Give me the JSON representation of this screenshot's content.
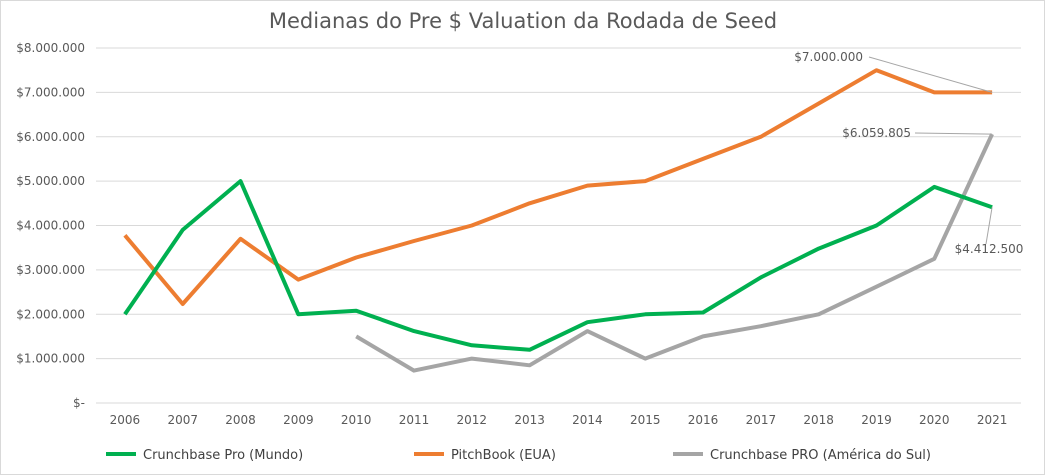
{
  "chart_data": {
    "type": "line",
    "title": "Medianas do Pre $ Valuation da Rodada de Seed",
    "xlabel": "",
    "ylabel": "",
    "categories": [
      "2006",
      "2007",
      "2008",
      "2009",
      "2010",
      "2011",
      "2012",
      "2013",
      "2014",
      "2015",
      "2016",
      "2017",
      "2018",
      "2019",
      "2020",
      "2021"
    ],
    "ylim": [
      0,
      8000000
    ],
    "y_ticks": [
      0,
      1000000,
      2000000,
      3000000,
      4000000,
      5000000,
      6000000,
      7000000,
      8000000
    ],
    "y_tick_labels": [
      "$-",
      "$1.000.000",
      "$2.000.000",
      "$3.000.000",
      "$4.000.000",
      "$5.000.000",
      "$6.000.000",
      "$7.000.000",
      "$8.000.000"
    ],
    "grid": true,
    "legend_position": "bottom",
    "series": [
      {
        "name": "Crunchbase Pro (Mundo)",
        "color": "#00b050",
        "values": [
          2000000,
          3900000,
          5000000,
          2000000,
          2080000,
          1620000,
          1300000,
          1200000,
          1820000,
          2000000,
          2040000,
          2830000,
          3480000,
          4000000,
          4870000,
          4412500
        ]
      },
      {
        "name": "PitchBook (EUA)",
        "color": "#ed7d31",
        "values": [
          3780000,
          2230000,
          3700000,
          2780000,
          3280000,
          3650000,
          4000000,
          4500000,
          4900000,
          5000000,
          5500000,
          6000000,
          6750000,
          7500000,
          7000000,
          7000000
        ]
      },
      {
        "name": "Crunchbase PRO (América do Sul)",
        "color": "#a5a5a5",
        "values": [
          null,
          null,
          null,
          null,
          1500000,
          730000,
          1000000,
          850000,
          1620000,
          1000000,
          1500000,
          1730000,
          2000000,
          2620000,
          3250000,
          6059805
        ]
      }
    ],
    "annotations": [
      {
        "text": "$7.000.000",
        "series": 1,
        "index": 15
      },
      {
        "text": "$6.059.805",
        "series": 2,
        "index": 15
      },
      {
        "text": "$4.412.500",
        "series": 0,
        "index": 15
      }
    ]
  }
}
